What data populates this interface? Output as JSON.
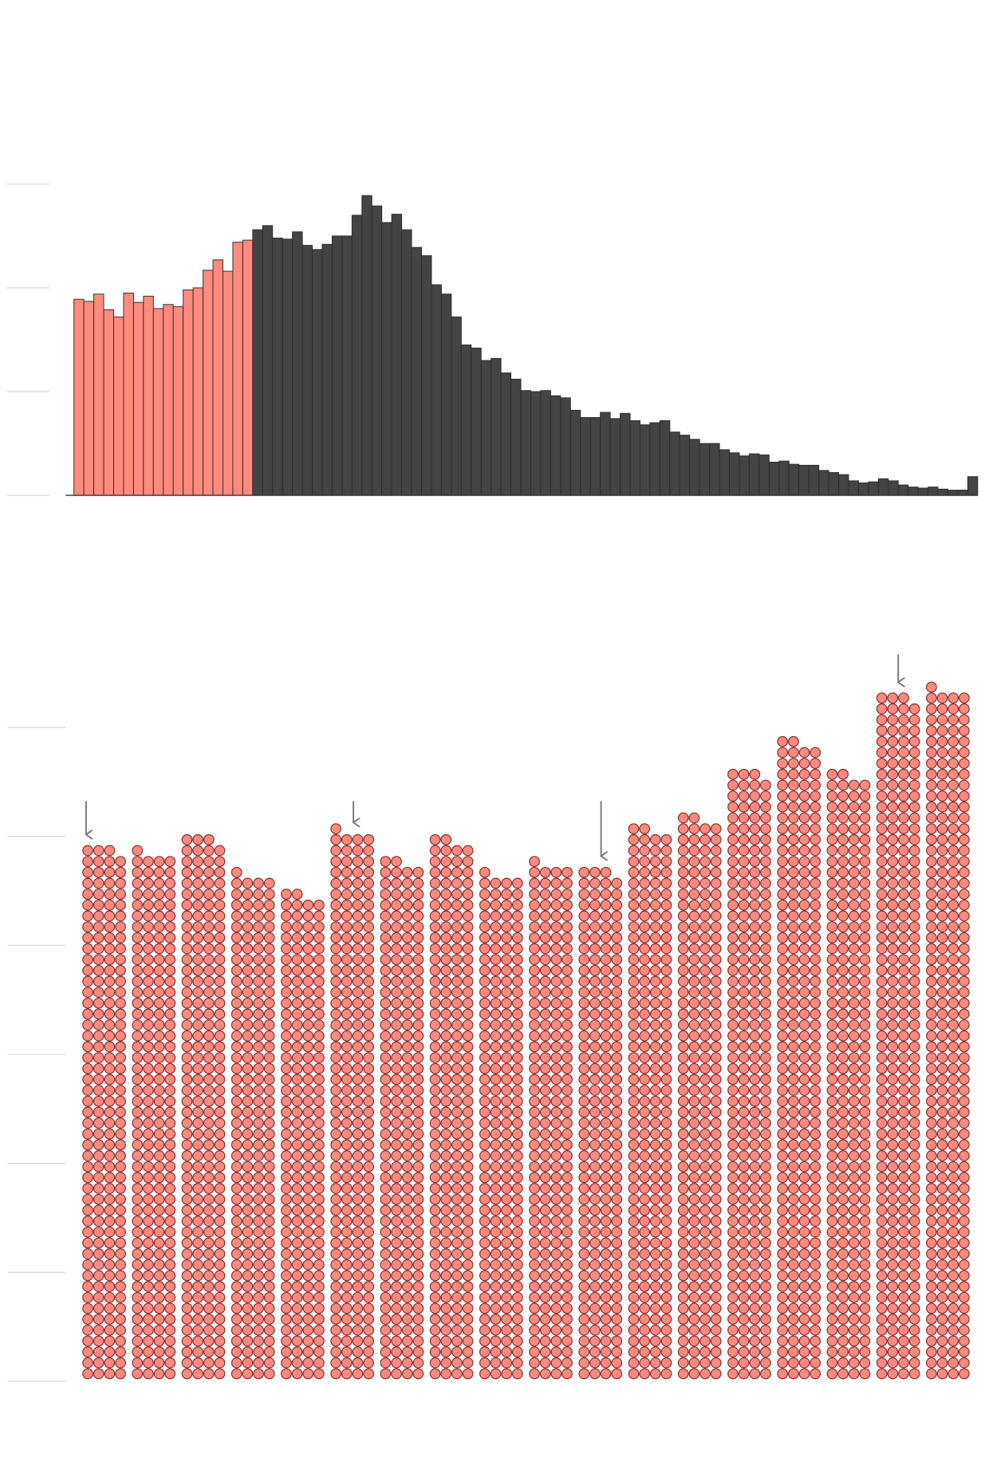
{
  "chart_data": [
    {
      "type": "bar",
      "values": [
        189,
        187,
        194,
        179,
        172,
        195,
        186,
        192,
        180,
        184,
        182,
        198,
        200,
        217,
        227,
        216,
        244,
        246,
        256,
        260,
        248,
        247,
        254,
        241,
        237,
        242,
        250,
        250,
        270,
        289,
        279,
        263,
        271,
        256,
        239,
        231,
        203,
        194,
        172,
        145,
        142,
        130,
        132,
        118,
        112,
        101,
        100,
        101,
        96,
        94,
        82,
        75,
        75,
        80,
        74,
        79,
        72,
        68,
        70,
        72,
        61,
        58,
        54,
        50,
        50,
        44,
        41,
        38,
        40,
        39,
        32,
        33,
        30,
        29,
        29,
        24,
        22,
        20,
        14,
        12,
        13,
        16,
        14,
        10,
        8,
        7,
        8,
        6,
        5,
        5,
        18
      ],
      "colors": [
        "#ff8a7d",
        "#ff8a7d",
        "#ff8a7d",
        "#ff8a7d",
        "#ff8a7d",
        "#ff8a7d",
        "#ff8a7d",
        "#ff8a7d",
        "#ff8a7d",
        "#ff8a7d",
        "#ff8a7d",
        "#ff8a7d",
        "#ff8a7d",
        "#ff8a7d",
        "#ff8a7d",
        "#ff8a7d",
        "#ff8a7d",
        "#ff8a7d",
        "#444444",
        "#444444",
        "#444444",
        "#444444",
        "#444444",
        "#444444",
        "#444444",
        "#444444",
        "#444444",
        "#444444",
        "#444444",
        "#444444",
        "#444444",
        "#444444",
        "#444444",
        "#444444",
        "#444444",
        "#444444",
        "#444444",
        "#444444",
        "#444444",
        "#444444",
        "#444444",
        "#444444",
        "#444444",
        "#444444",
        "#444444",
        "#444444",
        "#444444",
        "#444444",
        "#444444",
        "#444444",
        "#444444",
        "#444444",
        "#444444",
        "#444444",
        "#444444",
        "#444444",
        "#444444",
        "#444444",
        "#444444",
        "#444444",
        "#444444",
        "#444444",
        "#444444",
        "#444444",
        "#444444",
        "#444444",
        "#444444",
        "#444444",
        "#444444",
        "#444444",
        "#444444",
        "#444444",
        "#444444",
        "#444444",
        "#444444",
        "#444444",
        "#444444",
        "#444444",
        "#444444",
        "#444444",
        "#444444",
        "#444444",
        "#444444",
        "#444444",
        "#444444",
        "#444444",
        "#444444",
        "#444444",
        "#444444",
        "#444444",
        "#444444"
      ],
      "ylim": [
        0,
        300
      ],
      "yticks": [
        0,
        100,
        200,
        300
      ]
    },
    {
      "type": "dots",
      "values": [
        195,
        193,
        199,
        185,
        178,
        201,
        190,
        198,
        185,
        189,
        187,
        202,
        206,
        223,
        234,
        222,
        251,
        253
      ],
      "color": "#f98a80",
      "ylim": [
        0,
        260
      ],
      "yticks": [
        0,
        40,
        80,
        120,
        160,
        200,
        240
      ]
    }
  ]
}
